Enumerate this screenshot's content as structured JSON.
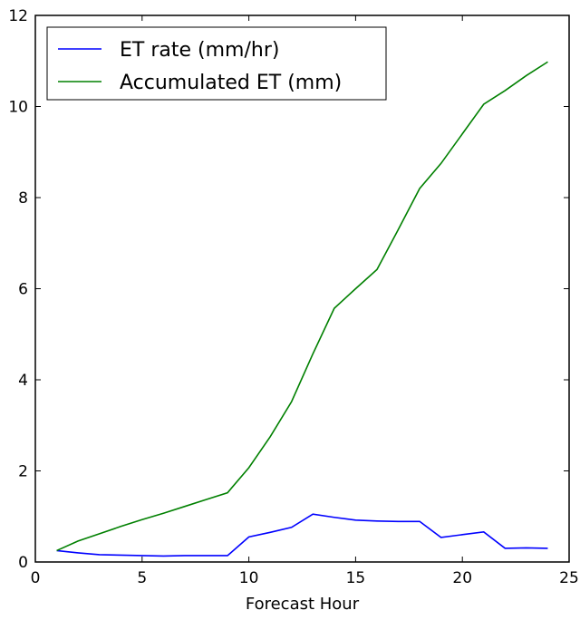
{
  "chart_data": {
    "type": "line",
    "title": "",
    "xlabel": "Forecast Hour",
    "ylabel": "",
    "xlim": [
      0,
      25
    ],
    "ylim": [
      0,
      12
    ],
    "xticks": [
      0,
      5,
      10,
      15,
      20,
      25
    ],
    "yticks": [
      0,
      2,
      4,
      6,
      8,
      10,
      12
    ],
    "grid": false,
    "legend_position": "top-left",
    "x": [
      1,
      2,
      3,
      4,
      5,
      6,
      7,
      8,
      9,
      10,
      11,
      12,
      13,
      14,
      15,
      16,
      17,
      18,
      19,
      20,
      21,
      22,
      23,
      24
    ],
    "series": [
      {
        "name": "ET rate (mm/hr)",
        "color": "#0000ff",
        "values": [
          0.25,
          0.2,
          0.16,
          0.15,
          0.14,
          0.13,
          0.14,
          0.14,
          0.14,
          0.55,
          0.65,
          0.76,
          1.05,
          0.98,
          0.92,
          0.9,
          0.89,
          0.89,
          0.54,
          0.6,
          0.66,
          0.3,
          0.31,
          0.3
        ]
      },
      {
        "name": "Accumulated ET (mm)",
        "color": "#008000",
        "values": [
          0.25,
          0.46,
          0.62,
          0.78,
          0.93,
          1.07,
          1.22,
          1.37,
          1.52,
          2.07,
          2.75,
          3.52,
          4.57,
          5.57,
          6.0,
          6.42,
          7.3,
          8.2,
          8.75,
          9.4,
          10.05,
          10.35,
          10.68,
          10.98
        ]
      }
    ]
  }
}
